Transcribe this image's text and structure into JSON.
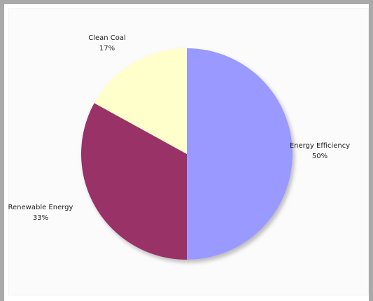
{
  "chart_data": {
    "type": "pie",
    "start_angle_deg": 0,
    "direction": "clockwise",
    "slices": [
      {
        "label": "Energy Efficiency",
        "value": 50,
        "value_label": "50%",
        "color": "#9999ff",
        "label_side": "right"
      },
      {
        "label": "Renewable Energy",
        "value": 33,
        "value_label": "33%",
        "color": "#993366",
        "label_side": "left"
      },
      {
        "label": "Clean Coal",
        "value": 17,
        "value_label": "17%",
        "color": "#ffffcc",
        "label_side": "top"
      }
    ]
  }
}
